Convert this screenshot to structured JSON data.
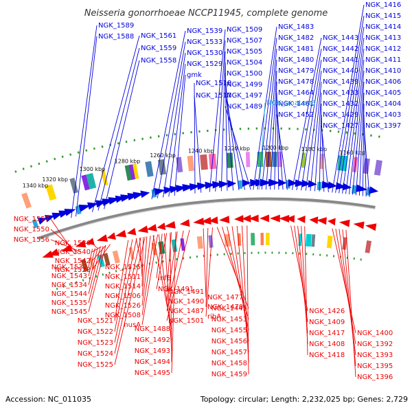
{
  "title": "Neisseria gonorrhoeae NCCP11945, complete genome",
  "footer": {
    "accession": "Accession: NC_011035",
    "info": "Topology: circular; Length: 2,232,025 bp; Genes: 2,729"
  },
  "colors": {
    "forward": "#0000dd",
    "reverse": "#ee0000",
    "rna": "#2aa7d8",
    "backbone": "#888888"
  },
  "map": {
    "ticks": [
      "1340 kbp",
      "1320 kbp",
      "1300 kbp",
      "1280 kbp",
      "1260 kbp",
      "1240 kbp",
      "1220 kbp",
      "1200 kbp",
      "1180 kbp",
      "1160 kbp"
    ],
    "forward_labels": [
      "NGK_1589",
      "NGK_1588",
      "NGK_1561",
      "NGK_1559",
      "NGK_1558",
      "NGK_1539",
      "NGK_1533",
      "NGK_1530",
      "NGK_1529",
      "gmk",
      "NGK_1518",
      "NGK_1517",
      "NGK_1509",
      "NGK_1507",
      "NGK_1505",
      "NGK_1504",
      "NGK_1500",
      "NGK_1499",
      "NGK_1497",
      "NGK_1489",
      "NGK_1483",
      "NGK_1482",
      "NGK_1481",
      "NGK_1480",
      "NGK_1479",
      "NGK_1478",
      "NGK_1464",
      "NGK_1461",
      "NGK_1452",
      "NGK_1443",
      "NGK_1442",
      "NGK_1441",
      "NGK_1440",
      "NGK_1439",
      "NGK_1433",
      "NGK_1432",
      "NGK_1429",
      "NGK_1427",
      "NGK_1416",
      "NGK_1415",
      "NGK_1414",
      "NGK_1413",
      "NGK_1412",
      "NGK_1411",
      "NGK_1410",
      "NGK_1406",
      "NGK_1405",
      "NGK_1404",
      "NGK_1403",
      "NGK_1397"
    ],
    "rna_labels": [
      "NGK_trnaLeu5"
    ],
    "reverse_labels": [
      "NGK_1557",
      "NGK_1550",
      "NGK_1556",
      "NGK_1536",
      "NGK_1540",
      "NGK_1542",
      "NGK_1528",
      "NGK_1532",
      "NGK_1543",
      "NGK_1534",
      "NGK_1544",
      "NGK_1535",
      "NGK_1545",
      "NGK_1515",
      "NGK_1511",
      "NGK_1514",
      "NGK_1506",
      "NGK_1526",
      "NGK_1508",
      "nusA",
      "infB",
      "NGK_1491",
      "NGK_1490",
      "NGK_1487",
      "NGK_1501",
      "NGK_1521",
      "NGK_1522",
      "NGK_1523",
      "NGK_1524",
      "NGK_1525",
      "NGK_1488",
      "NGK_1492",
      "NGK_1493",
      "NGK_1494",
      "NGK_1495",
      "NGK_1477",
      "NGK_1470",
      "ribA",
      "NGK_1445",
      "NGK_1453",
      "NGK_1455",
      "NGK_1456",
      "NGK_1457",
      "NGK_1458",
      "NGK_1459",
      "NGK_1426",
      "NGK_1409",
      "NGK_1417",
      "NGK_1408",
      "NGK_1418",
      "NGK_1400",
      "NGK_1392",
      "NGK_1393",
      "NGK_1395",
      "NGK_1396"
    ]
  }
}
